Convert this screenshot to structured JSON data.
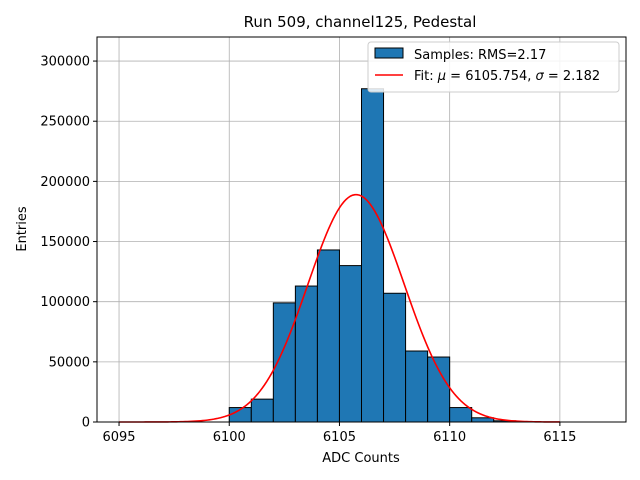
{
  "chart_data": {
    "type": "bar",
    "title": "Run 509, channel125, Pedestal",
    "xlabel": "ADC Counts",
    "ylabel": "Entries",
    "xlim": [
      6094,
      6118
    ],
    "ylim": [
      0,
      320000
    ],
    "xticks": [
      6095,
      6100,
      6105,
      6110,
      6115
    ],
    "yticks": [
      0,
      50000,
      100000,
      150000,
      200000,
      250000,
      300000
    ],
    "grid": true,
    "legend_position": "top-right",
    "bin_width": 1,
    "histogram": {
      "name": "Samples: RMS=2.17",
      "color": "#1f77b4",
      "edgecolor": "#000000",
      "bins": [
        {
          "x": 6100,
          "value": 12000
        },
        {
          "x": 6101,
          "value": 19000
        },
        {
          "x": 6102,
          "value": 99000
        },
        {
          "x": 6103,
          "value": 113000
        },
        {
          "x": 6104,
          "value": 143000
        },
        {
          "x": 6105,
          "value": 130000
        },
        {
          "x": 6106,
          "value": 277000
        },
        {
          "x": 6107,
          "value": 107000
        },
        {
          "x": 6108,
          "value": 59000
        },
        {
          "x": 6109,
          "value": 54000
        },
        {
          "x": 6110,
          "value": 12000
        },
        {
          "x": 6111,
          "value": 3500
        },
        {
          "x": 6112,
          "value": 1000
        }
      ]
    },
    "fit": {
      "name": "Fit: μ = 6105.754, σ = 2.182",
      "name_parts": {
        "prefix": "Fit: ",
        "mu_symbol": "μ",
        "mu_text": " = 6105.754, ",
        "sigma_symbol": "σ",
        "sigma_text": " = 2.182"
      },
      "color": "#ff0000",
      "mu": 6105.754,
      "sigma": 2.182,
      "amplitude": 189000,
      "x_range": [
        6095,
        6115
      ]
    }
  }
}
